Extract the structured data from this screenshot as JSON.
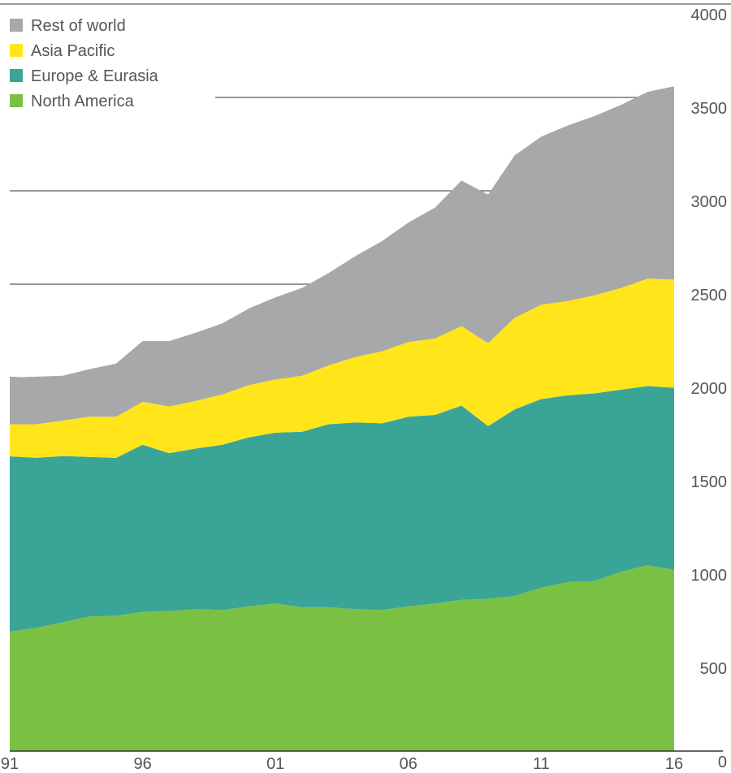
{
  "chart_data": {
    "type": "stacked_area",
    "categories": [
      "91",
      null,
      null,
      null,
      null,
      "96",
      null,
      null,
      null,
      null,
      "01",
      null,
      null,
      null,
      null,
      "06",
      null,
      null,
      null,
      null,
      "11",
      null,
      null,
      null,
      null,
      "16"
    ],
    "series": [
      {
        "name": "North America",
        "color": "#7ac143",
        "values": [
          640,
          660,
          690,
          720,
          725,
          745,
          750,
          760,
          755,
          775,
          790,
          770,
          770,
          760,
          755,
          775,
          790,
          810,
          815,
          830,
          875,
          905,
          910,
          960,
          995,
          970
        ]
      },
      {
        "name": "Europe & Eurasia",
        "color": "#3aa597",
        "values": [
          938,
          910,
          890,
          855,
          845,
          895,
          845,
          860,
          885,
          905,
          915,
          940,
          980,
          1000,
          1000,
          1015,
          1010,
          1040,
          925,
          1000,
          1010,
          1000,
          1005,
          975,
          960,
          975
        ]
      },
      {
        "name": "Asia Pacific",
        "color": "#ffe51a",
        "values": [
          172,
          180,
          190,
          215,
          220,
          230,
          250,
          255,
          270,
          280,
          285,
          300,
          315,
          350,
          385,
          400,
          410,
          425,
          445,
          490,
          505,
          505,
          525,
          545,
          575,
          580
        ]
      },
      {
        "name": "Rest of world",
        "color": "#a7a8aa",
        "values": [
          250,
          255,
          240,
          255,
          285,
          325,
          350,
          365,
          380,
          410,
          440,
          470,
          495,
          540,
          590,
          640,
          700,
          780,
          795,
          870,
          900,
          940,
          960,
          980,
          1000,
          1035
        ]
      }
    ],
    "ylim": [
      0,
      4000
    ],
    "yticks": [
      0,
      500,
      1000,
      1500,
      2000,
      2500,
      3000,
      3500,
      4000
    ],
    "grid": true,
    "legend": "top-left"
  }
}
